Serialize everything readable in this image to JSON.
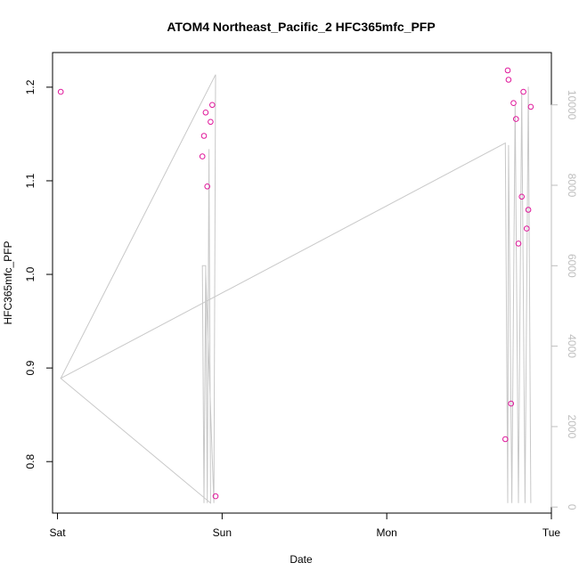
{
  "chart_data": {
    "type": "scatter",
    "title": "ATOM4 Northeast_Pacific_2 HFC365mfc_PFP",
    "xlabel": "Date",
    "ylabel": "HFC365mfc_PFP",
    "x_range_days": [
      -0.03,
      3.0
    ],
    "xticks": [
      {
        "label": "Sat",
        "value": 0
      },
      {
        "label": "Sun",
        "value": 1
      },
      {
        "label": "Mon",
        "value": 2
      },
      {
        "label": "Tue",
        "value": 3
      }
    ],
    "ylim": [
      0.745,
      1.237
    ],
    "yticks": [
      0.8,
      0.9,
      1.0,
      1.1,
      1.2
    ],
    "ytick_labels": [
      "0.8",
      "0.9",
      "1.0",
      "1.1",
      "1.2"
    ],
    "y2lim": [
      -150,
      11300
    ],
    "y2ticks": [
      0,
      2000,
      4000,
      6000,
      8000,
      10000
    ],
    "y2tick_labels": [
      "0",
      "2000",
      "4000",
      "6000",
      "8000",
      "10000"
    ],
    "colors": {
      "points": "#e0189b",
      "line": "#c8c8c8",
      "y2_axis": "#bebebe"
    },
    "series": [
      {
        "type": "scatter",
        "axis": "left",
        "points": [
          [
            0.02,
            1.195
          ],
          [
            0.88,
            1.126
          ],
          [
            0.89,
            1.148
          ],
          [
            0.9,
            1.173
          ],
          [
            0.91,
            1.094
          ],
          [
            0.93,
            1.163
          ],
          [
            0.94,
            1.181
          ],
          [
            0.96,
            0.763
          ],
          [
            2.72,
            0.824
          ],
          [
            2.735,
            1.218
          ],
          [
            2.74,
            1.208
          ],
          [
            2.755,
            0.862
          ],
          [
            2.77,
            1.183
          ],
          [
            2.785,
            1.166
          ],
          [
            2.8,
            1.033
          ],
          [
            2.82,
            1.083
          ],
          [
            2.83,
            1.195
          ],
          [
            2.85,
            1.049
          ],
          [
            2.86,
            1.069
          ],
          [
            2.875,
            1.179
          ]
        ]
      },
      {
        "type": "line",
        "axis": "right",
        "points": [
          [
            0.02,
            3200
          ],
          [
            0.96,
            10750
          ],
          [
            0.95,
            100
          ],
          [
            0.9,
            5850
          ],
          [
            0.89,
            100
          ],
          [
            0.88,
            6000
          ],
          [
            0.9,
            6000
          ],
          [
            0.91,
            100
          ],
          [
            0.92,
            8900
          ],
          [
            0.93,
            100
          ],
          [
            0.02,
            3200
          ],
          [
            2.72,
            9050
          ],
          [
            2.735,
            100
          ],
          [
            2.74,
            9000
          ],
          [
            2.76,
            100
          ],
          [
            2.78,
            10000
          ],
          [
            2.8,
            100
          ],
          [
            2.82,
            10300
          ],
          [
            2.84,
            100
          ],
          [
            2.86,
            10450
          ],
          [
            2.875,
            100
          ]
        ]
      }
    ]
  }
}
